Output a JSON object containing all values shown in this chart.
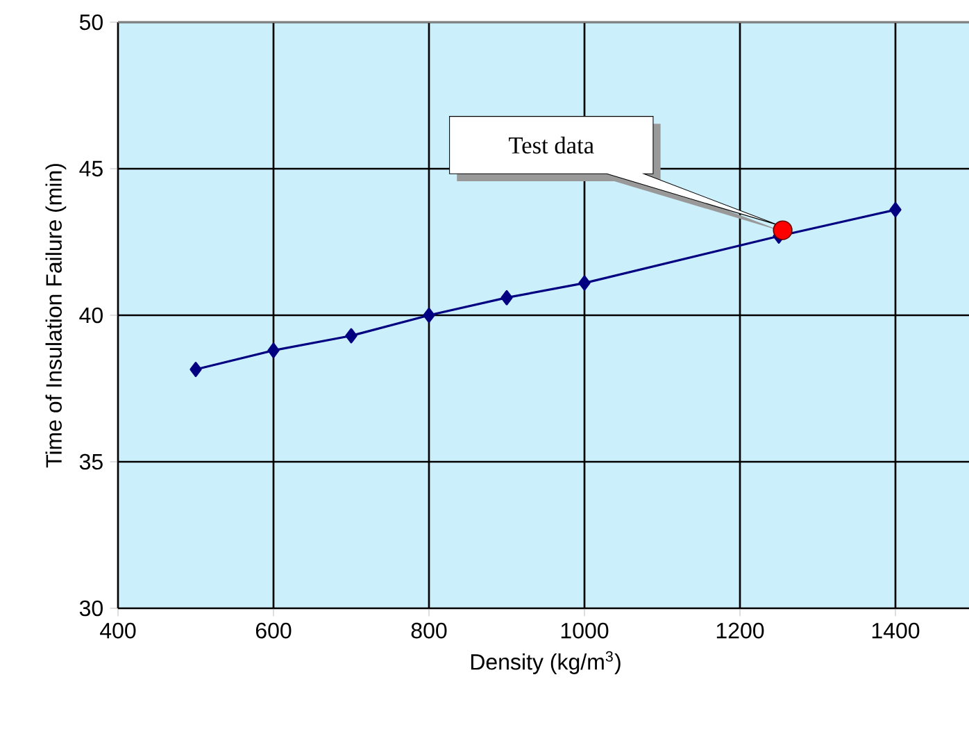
{
  "chart_data": {
    "type": "line",
    "xlabel": "Density (kg/m$^{3}$)",
    "ylabel": "Time of Insulation Failure (min)",
    "xlim": [
      400,
      1500
    ],
    "xticks": [
      400,
      600,
      800,
      1000,
      1200,
      1400
    ],
    "ylim": [
      30,
      50
    ],
    "yticks": [
      30,
      35,
      40,
      45,
      50
    ],
    "grid": true,
    "marker": "diamond",
    "line_style": "solid",
    "series": [
      {
        "color": "#000080",
        "x": [
          500,
          600,
          700,
          800,
          900,
          1000,
          1250,
          1400
        ],
        "values": [
          38.15,
          38.8,
          39.3,
          40.0,
          40.6,
          41.1,
          42.7,
          43.6
        ]
      },
      {
        "type": "scatter",
        "marker": "circle",
        "color": "#ff0000",
        "x": [
          1255
        ],
        "values": [
          42.9
        ]
      }
    ],
    "annotations": [
      "Test data"
    ]
  }
}
